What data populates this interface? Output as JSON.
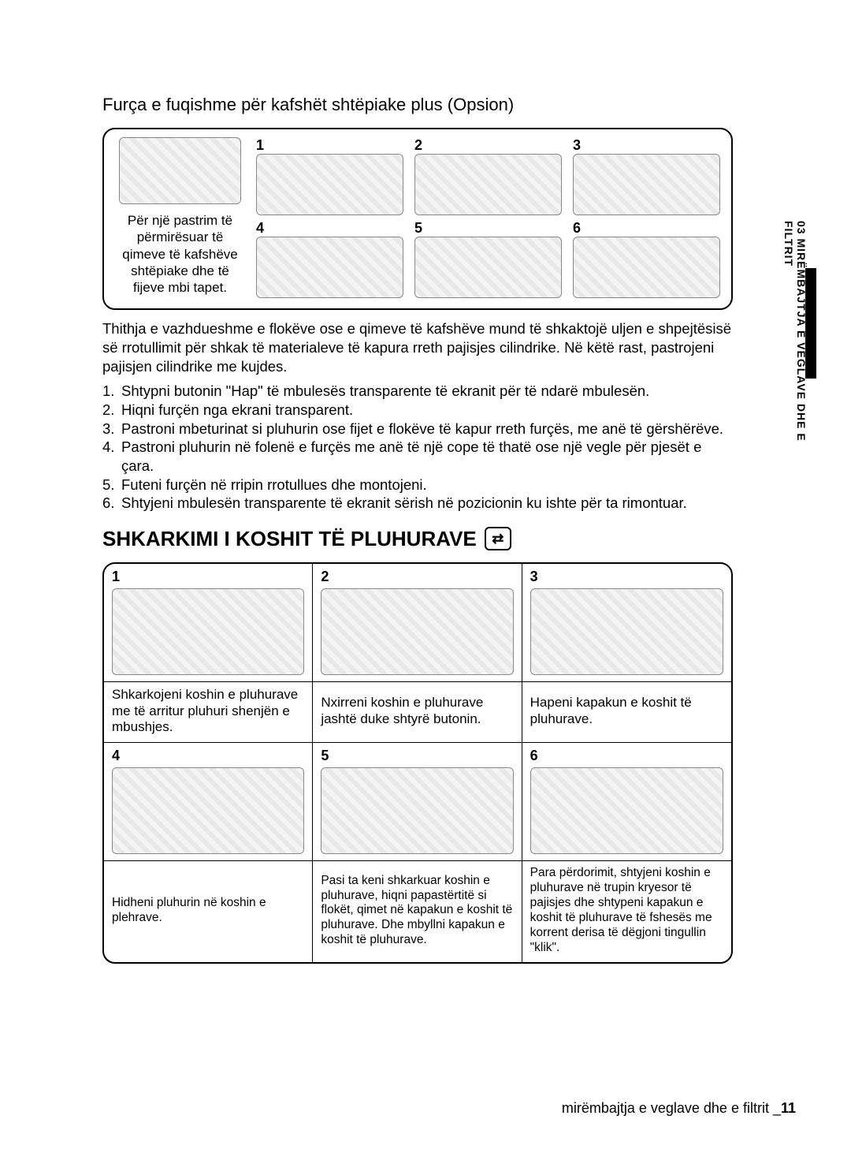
{
  "subtitle": "Furça e fuqishme për kafshët shtëpiake plus (Opsion)",
  "box1": {
    "leftText": "Për një pastrim të përmirësuar të qimeve të kafshëve shtëpiake dhe të fijeve mbi tapet.",
    "cells": [
      "1",
      "2",
      "3",
      "4",
      "5",
      "6"
    ]
  },
  "paragraph": "Thithja e vazhdueshme e flokëve ose e qimeve të kafshëve mund të shkaktojë uljen e shpejtësisë së rrotullimit për shkak të materialeve të kapura rreth pajisjes cilindrike. Në këtë rast, pastrojeni pajisjen cilindrike me kujdes.",
  "steps": [
    "Shtypni butonin \"Hap\" të mbulesës transparente të ekranit për të ndarë mbulesën.",
    "Hiqni furçën nga ekrani transparent.",
    "Pastroni mbeturinat si pluhurin ose fijet e flokëve të kapur rreth furçës, me anë të gërshërëve.",
    "Pastroni pluhurin në folenë e furçës me anë të një cope të thatë ose një vegle për pjesët e çara.",
    "Futeni furçën në rripin rrotullues dhe montojeni.",
    "Shtyjeni mbulesën transparente të ekranit sërish në pozicionin ku ishte për ta rimontuar."
  ],
  "sectionTitle": "SHKARKIMI I KOSHIT TË PLUHURAVE",
  "iconGlyph": "⇄",
  "grid": {
    "row1": [
      "1",
      "2",
      "3"
    ],
    "row1txt": [
      "Shkarkojeni koshin e pluhurave me të arritur pluhuri shenjën e mbushjes.",
      "Nxirreni koshin e pluhurave jashtë duke shtyrë butonin.",
      "Hapeni kapakun e koshit të pluhurave."
    ],
    "row2": [
      "4",
      "5",
      "6"
    ],
    "row2txt": [
      "Hidheni pluhurin në koshin e plehrave.",
      "Pasi ta keni shkarkuar koshin e pluhurave, hiqni papastërtitë si flokët, qimet në kapakun e koshit të pluhurave. Dhe mbyllni kapakun e koshit të pluhurave.",
      "Para përdorimit, shtyjeni koshin e pluhurave në trupin kryesor të pajisjes dhe shtypeni kapakun e koshit të pluhurave të fshesës me korrent derisa të dëgjoni tingullin \"klik\"."
    ]
  },
  "sideTab": "03 MIRËMBAJTJA E VEGLAVE DHE E FILTRIT",
  "footer": {
    "text": "mirëmbajtja e veglave dhe e filtrit _",
    "page": "11"
  }
}
